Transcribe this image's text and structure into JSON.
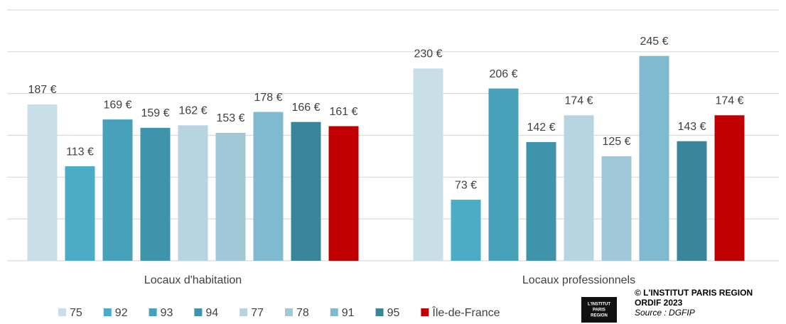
{
  "chart_data": {
    "type": "bar",
    "categories": [
      "Locaux d'habitation",
      "Locaux professionnels"
    ],
    "series": [
      {
        "name": "75",
        "color": "#c9dfe8",
        "values": [
          187,
          230
        ],
        "value_labels": [
          "187 €",
          "230 €"
        ]
      },
      {
        "name": "92",
        "color": "#4bacc6",
        "values": [
          113,
          73
        ],
        "value_labels": [
          "113 €",
          "73 €"
        ]
      },
      {
        "name": "93",
        "color": "#46a1b9",
        "values": [
          169,
          206
        ],
        "value_labels": [
          "169 €",
          "206 €"
        ]
      },
      {
        "name": "94",
        "color": "#3f93aa",
        "values": [
          159,
          142
        ],
        "value_labels": [
          "159 €",
          "142 €"
        ]
      },
      {
        "name": "77",
        "color": "#b7d5e0",
        "values": [
          162,
          174
        ],
        "value_labels": [
          "162 €",
          "174 €"
        ]
      },
      {
        "name": "78",
        "color": "#a1c8d6",
        "values": [
          153,
          125
        ],
        "value_labels": [
          "153 €",
          "125 €"
        ]
      },
      {
        "name": "91",
        "color": "#7fbad0",
        "values": [
          178,
          245
        ],
        "value_labels": [
          "178 €",
          "245 €"
        ]
      },
      {
        "name": "95",
        "color": "#3a8599",
        "values": [
          166,
          143
        ],
        "value_labels": [
          "166 €",
          "143 €"
        ]
      },
      {
        "name": "Île-de-France",
        "color": "#c00000",
        "values": [
          161,
          174
        ],
        "value_labels": [
          "161 €",
          "174 €"
        ]
      }
    ],
    "ylim": [
      0,
      300
    ],
    "yticks": [
      0,
      50,
      100,
      150,
      200,
      250,
      300
    ],
    "grid": true,
    "legend": "bottom",
    "logo": [
      "L'INSTITUT",
      "PARIS",
      "REGION"
    ],
    "credits": [
      "© L'INSTITUT PARIS REGION",
      "ORDIF 2023"
    ],
    "source": "Source : DGFIP"
  }
}
